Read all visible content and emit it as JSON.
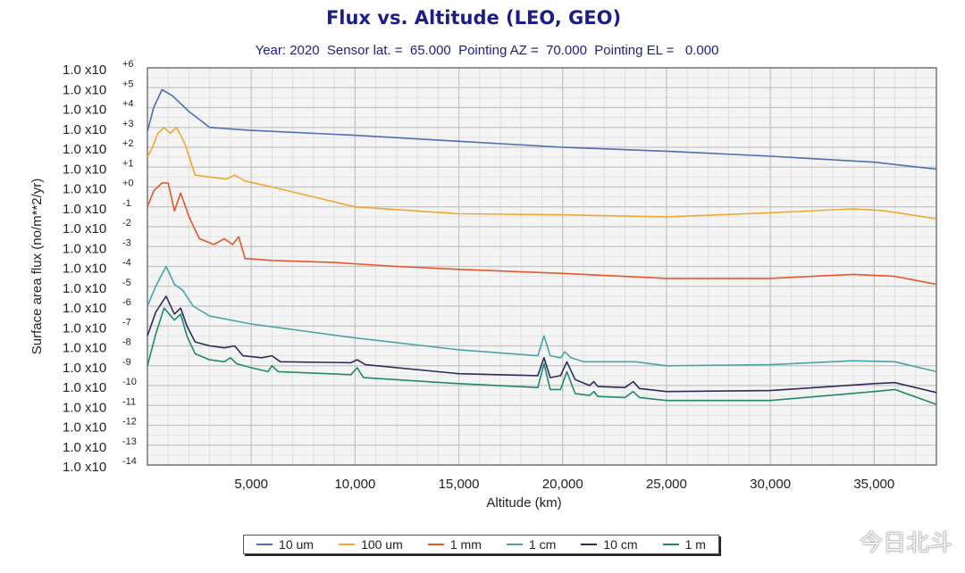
{
  "watermark": "今日北斗",
  "chart_data": {
    "type": "line",
    "title": "Flux vs. Altitude (LEO, GEO)",
    "subtitle": "Year: 2020  Sensor lat. =  65.000  Pointing AZ =  70.000  Pointing EL =   0.000",
    "xlabel": "Altitude (km)",
    "ylabel": "Surface area flux (no/m**2/yr)",
    "xlim": [
      0,
      38000
    ],
    "ylim_log10": [
      -14,
      6
    ],
    "y_scale": "log",
    "x_ticks": [
      5000,
      10000,
      15000,
      20000,
      25000,
      30000,
      35000
    ],
    "x_tick_labels": [
      "5,000",
      "10,000",
      "15,000",
      "20,000",
      "25,000",
      "30,000",
      "35,000"
    ],
    "y_tick_mantissa": "1.0 x10",
    "y_tick_exponents": [
      "+6",
      "+5",
      "+4",
      "+3",
      "+2",
      "+1",
      "+0",
      "-1",
      "-2",
      "-3",
      "-4",
      "-5",
      "-6",
      "-7",
      "-8",
      "-9",
      "-10",
      "-11",
      "-12",
      "-13",
      "-14"
    ],
    "grid": true,
    "legend_position": "bottom",
    "series": [
      {
        "name": "10 um",
        "color": "#4c6fb5",
        "log10_points": [
          [
            0,
            2.8
          ],
          [
            300,
            4.0
          ],
          [
            700,
            4.9
          ],
          [
            1200,
            4.6
          ],
          [
            2000,
            3.8
          ],
          [
            3000,
            3.0
          ],
          [
            5000,
            2.85
          ],
          [
            10000,
            2.6
          ],
          [
            15000,
            2.3
          ],
          [
            20000,
            2.0
          ],
          [
            25000,
            1.8
          ],
          [
            30000,
            1.55
          ],
          [
            35000,
            1.25
          ],
          [
            38000,
            0.9
          ]
        ]
      },
      {
        "name": "100 um",
        "color": "#f0a830",
        "log10_points": [
          [
            0,
            1.5
          ],
          [
            250,
            2.0
          ],
          [
            500,
            2.7
          ],
          [
            800,
            3.0
          ],
          [
            1100,
            2.7
          ],
          [
            1400,
            3.0
          ],
          [
            1800,
            2.2
          ],
          [
            2300,
            0.6
          ],
          [
            3000,
            0.5
          ],
          [
            3800,
            0.4
          ],
          [
            4200,
            0.6
          ],
          [
            4700,
            0.3
          ],
          [
            6000,
            0.0
          ],
          [
            10000,
            -1.0
          ],
          [
            15000,
            -1.35
          ],
          [
            20000,
            -1.4
          ],
          [
            25000,
            -1.5
          ],
          [
            30000,
            -1.3
          ],
          [
            34000,
            -1.1
          ],
          [
            35500,
            -1.2
          ],
          [
            38000,
            -1.6
          ]
        ]
      },
      {
        "name": "1 mm",
        "color": "#e8562a",
        "log10_points": [
          [
            0,
            -1.0
          ],
          [
            300,
            -0.2
          ],
          [
            700,
            0.2
          ],
          [
            1000,
            0.2
          ],
          [
            1300,
            -1.2
          ],
          [
            1600,
            -0.3
          ],
          [
            2000,
            -1.5
          ],
          [
            2500,
            -2.6
          ],
          [
            3200,
            -2.9
          ],
          [
            3700,
            -2.6
          ],
          [
            4100,
            -2.9
          ],
          [
            4400,
            -2.5
          ],
          [
            4700,
            -3.6
          ],
          [
            6000,
            -3.7
          ],
          [
            9000,
            -3.8
          ],
          [
            12000,
            -4.0
          ],
          [
            15000,
            -4.15
          ],
          [
            20000,
            -4.35
          ],
          [
            25000,
            -4.6
          ],
          [
            30000,
            -4.6
          ],
          [
            34000,
            -4.4
          ],
          [
            36000,
            -4.5
          ],
          [
            38000,
            -4.9
          ]
        ]
      },
      {
        "name": "1 cm",
        "color": "#4aa3a7",
        "log10_points": [
          [
            0,
            -6.0
          ],
          [
            400,
            -5.0
          ],
          [
            900,
            -4.0
          ],
          [
            1300,
            -4.9
          ],
          [
            1700,
            -5.2
          ],
          [
            2200,
            -6.0
          ],
          [
            3000,
            -6.5
          ],
          [
            5000,
            -6.9
          ],
          [
            10000,
            -7.6
          ],
          [
            15000,
            -8.2
          ],
          [
            18800,
            -8.5
          ],
          [
            19100,
            -7.5
          ],
          [
            19400,
            -8.5
          ],
          [
            19900,
            -8.6
          ],
          [
            20100,
            -8.3
          ],
          [
            20400,
            -8.6
          ],
          [
            21000,
            -8.8
          ],
          [
            23500,
            -8.8
          ],
          [
            25000,
            -9.0
          ],
          [
            30000,
            -8.95
          ],
          [
            34000,
            -8.75
          ],
          [
            36000,
            -8.8
          ],
          [
            38000,
            -9.3
          ]
        ]
      },
      {
        "name": "10 cm",
        "color": "#2b2b5e",
        "log10_points": [
          [
            0,
            -7.5
          ],
          [
            400,
            -6.3
          ],
          [
            900,
            -5.5
          ],
          [
            1300,
            -6.4
          ],
          [
            1600,
            -6.1
          ],
          [
            1900,
            -7.0
          ],
          [
            2300,
            -7.8
          ],
          [
            3000,
            -8.0
          ],
          [
            3700,
            -8.1
          ],
          [
            4200,
            -8.0
          ],
          [
            4600,
            -8.5
          ],
          [
            5500,
            -8.6
          ],
          [
            6000,
            -8.5
          ],
          [
            6400,
            -8.8
          ],
          [
            9800,
            -8.85
          ],
          [
            10100,
            -8.7
          ],
          [
            10500,
            -8.95
          ],
          [
            15000,
            -9.4
          ],
          [
            18800,
            -9.5
          ],
          [
            19100,
            -8.6
          ],
          [
            19400,
            -9.6
          ],
          [
            19900,
            -9.5
          ],
          [
            20200,
            -8.8
          ],
          [
            20600,
            -9.7
          ],
          [
            21300,
            -10.0
          ],
          [
            21500,
            -9.8
          ],
          [
            21700,
            -10.05
          ],
          [
            23000,
            -10.1
          ],
          [
            23400,
            -9.8
          ],
          [
            23700,
            -10.15
          ],
          [
            25000,
            -10.3
          ],
          [
            30000,
            -10.25
          ],
          [
            35000,
            -9.9
          ],
          [
            36000,
            -9.85
          ],
          [
            38000,
            -10.35
          ]
        ]
      },
      {
        "name": "1 m",
        "color": "#1f8a6a",
        "log10_points": [
          [
            0,
            -9.0
          ],
          [
            400,
            -7.4
          ],
          [
            800,
            -6.1
          ],
          [
            1300,
            -6.7
          ],
          [
            1600,
            -6.4
          ],
          [
            1900,
            -7.5
          ],
          [
            2300,
            -8.4
          ],
          [
            3000,
            -8.7
          ],
          [
            3700,
            -8.8
          ],
          [
            4000,
            -8.6
          ],
          [
            4300,
            -8.9
          ],
          [
            5000,
            -9.1
          ],
          [
            5800,
            -9.3
          ],
          [
            6000,
            -9.0
          ],
          [
            6300,
            -9.3
          ],
          [
            9800,
            -9.45
          ],
          [
            10100,
            -9.1
          ],
          [
            10400,
            -9.6
          ],
          [
            15000,
            -9.9
          ],
          [
            18800,
            -10.1
          ],
          [
            19100,
            -8.9
          ],
          [
            19400,
            -10.2
          ],
          [
            19900,
            -10.2
          ],
          [
            20200,
            -9.3
          ],
          [
            20600,
            -10.4
          ],
          [
            21300,
            -10.5
          ],
          [
            21500,
            -10.3
          ],
          [
            21700,
            -10.55
          ],
          [
            23000,
            -10.6
          ],
          [
            23400,
            -10.3
          ],
          [
            23700,
            -10.6
          ],
          [
            25000,
            -10.75
          ],
          [
            30000,
            -10.75
          ],
          [
            35000,
            -10.3
          ],
          [
            36000,
            -10.2
          ],
          [
            38000,
            -10.95
          ]
        ]
      }
    ]
  }
}
